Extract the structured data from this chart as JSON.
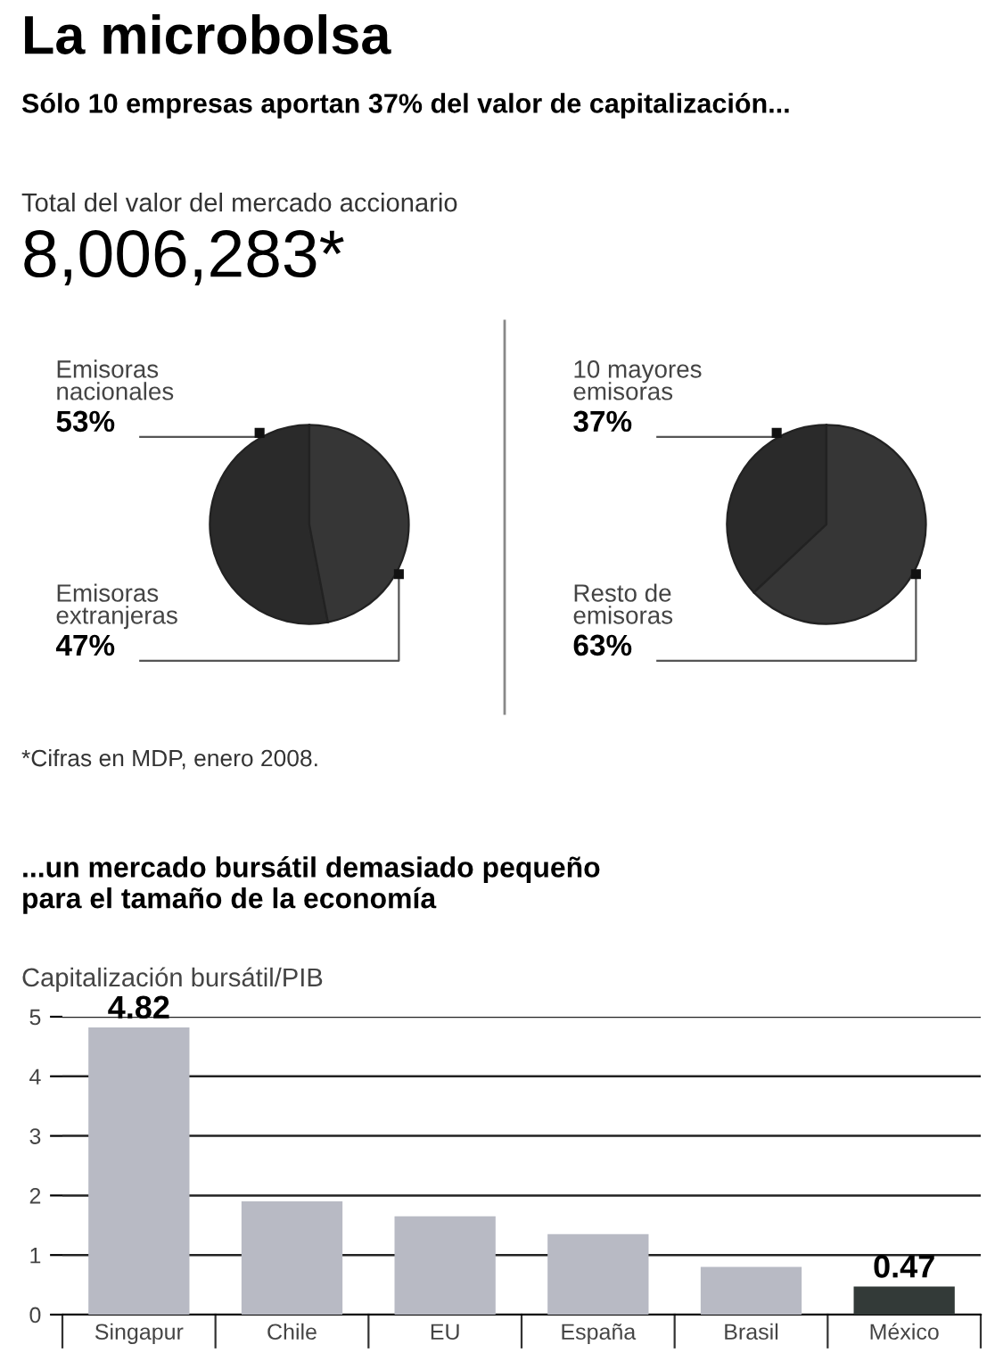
{
  "chart_data": [
    {
      "type": "pie",
      "title": "La microbolsa",
      "subtitle": "Sólo 10 empresas aportan 37% del valor de capitalización...",
      "annotations": [
        "Total del valor del mercado accionario",
        "8,006,283*",
        "*Cifras en MDP, enero 2008."
      ],
      "categories": [
        "Emisoras\nnacionales",
        "Emisoras\nextranjeras"
      ],
      "values": [
        53,
        47
      ],
      "colors": [
        "#2a2a2a",
        "#363636"
      ],
      "value_labels": [
        "53%",
        "47%"
      ]
    },
    {
      "type": "pie",
      "categories": [
        "10 mayores\nemisoras",
        "Resto de\nemisoras"
      ],
      "values": [
        37,
        63
      ],
      "colors": [
        "#2a2a2a",
        "#363636"
      ],
      "value_labels": [
        "37%",
        "63%"
      ]
    },
    {
      "type": "bar",
      "title": "...un mercado bursátil demasiado pequeño\npara el tamaño de la economía",
      "ylabel": "Capitalización bursátil/PIB",
      "categories": [
        "Singapur",
        "Chile",
        "EU",
        "España",
        "Brasil",
        "México"
      ],
      "values": [
        4.82,
        1.9,
        1.65,
        1.35,
        0.8,
        0.47
      ],
      "colors": [
        "#b8bac4",
        "#b8bac4",
        "#b8bac4",
        "#b8bac4",
        "#b8bac4",
        "#333a38"
      ],
      "value_labels": [
        "4.82",
        null,
        null,
        null,
        null,
        "0.47"
      ],
      "ylim": [
        0,
        5
      ],
      "yticks": [
        0,
        1,
        2,
        3,
        4,
        5
      ],
      "grid": "y"
    }
  ]
}
